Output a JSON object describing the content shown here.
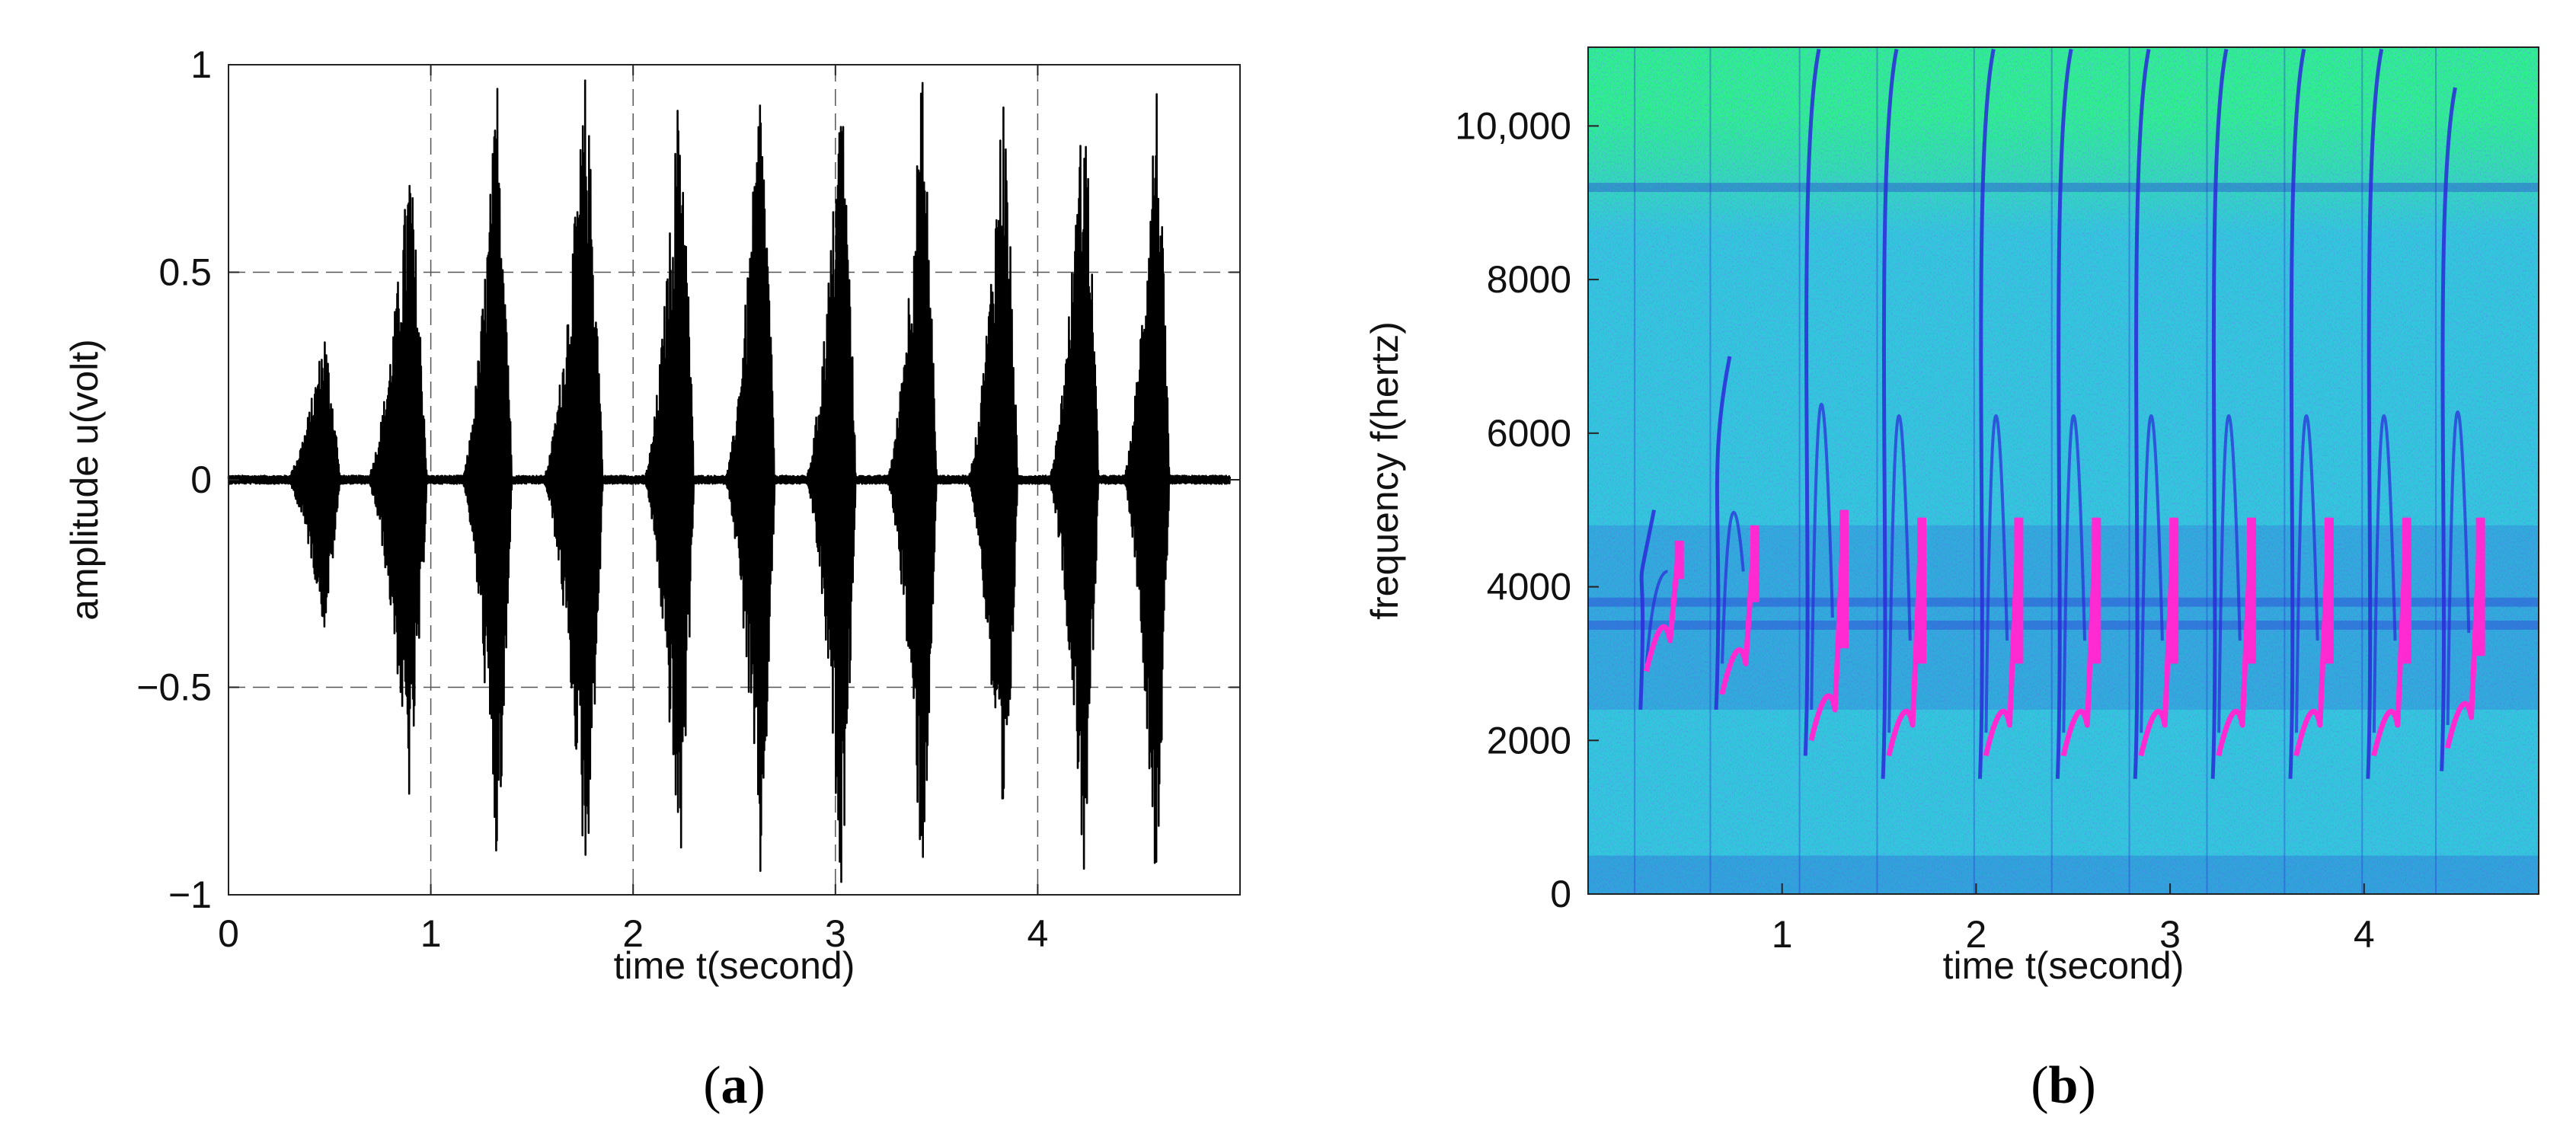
{
  "chart_data": [
    {
      "panel_label": "a",
      "type": "line",
      "xlabel": "time t(second)",
      "ylabel": "amplitude u(volt)",
      "xlim": [
        0,
        5
      ],
      "ylim": [
        -1,
        1
      ],
      "x_ticks": [
        0,
        1,
        2,
        3,
        4
      ],
      "x_tick_labels": [
        "0",
        "1",
        "2",
        "3",
        "4"
      ],
      "y_ticks": [
        -1,
        -0.5,
        0,
        0.5,
        1
      ],
      "y_tick_labels": [
        "−1",
        "−0.5",
        "0",
        "0.5",
        "1"
      ],
      "grid": "dashed",
      "series_color": "#000000",
      "bursts": [
        {
          "start": 0.28,
          "end": 0.55,
          "amplitude": 0.37
        },
        {
          "start": 0.68,
          "end": 0.98,
          "amplitude": 0.8
        },
        {
          "start": 1.15,
          "end": 1.4,
          "amplitude": 1.0
        },
        {
          "start": 1.55,
          "end": 1.85,
          "amplitude": 1.0
        },
        {
          "start": 2.05,
          "end": 2.3,
          "amplitude": 1.0
        },
        {
          "start": 2.45,
          "end": 2.7,
          "amplitude": 1.0
        },
        {
          "start": 2.85,
          "end": 3.1,
          "amplitude": 1.0
        },
        {
          "start": 3.25,
          "end": 3.5,
          "amplitude": 1.0
        },
        {
          "start": 3.65,
          "end": 3.9,
          "amplitude": 0.98
        },
        {
          "start": 4.05,
          "end": 4.3,
          "amplitude": 0.98
        },
        {
          "start": 4.42,
          "end": 4.65,
          "amplitude": 1.0
        }
      ],
      "baseline_noise": 0.01
    },
    {
      "panel_label": "b",
      "type": "heatmap",
      "xlabel": "time t(second)",
      "ylabel": "frequency f(hertz)",
      "xlim": [
        0,
        4.9
      ],
      "ylim": [
        0,
        11025
      ],
      "x_ticks": [
        1,
        2,
        3,
        4
      ],
      "x_tick_labels": [
        "1",
        "2",
        "3",
        "4"
      ],
      "y_ticks": [
        0,
        2000,
        4000,
        6000,
        8000,
        10000
      ],
      "y_tick_labels": [
        "0",
        "2000",
        "4000",
        "6000",
        "8000",
        "10,000"
      ],
      "colors": {
        "background": "#33c8dc",
        "top": "#2ef08c",
        "energy": "#2a2ad8",
        "peak": "#ff2ad2"
      },
      "syllables": [
        {
          "t": 0.27,
          "f_start": 2400,
          "f_end": 5000,
          "peak_band": [
            2900,
            4600
          ]
        },
        {
          "t": 0.66,
          "f_start": 2400,
          "f_end": 7000,
          "peak_band": [
            2600,
            4800
          ]
        },
        {
          "t": 1.12,
          "f_start": 1800,
          "f_end": 11000,
          "peak_band": [
            2000,
            5000
          ]
        },
        {
          "t": 1.52,
          "f_start": 1500,
          "f_end": 11000,
          "peak_band": [
            1800,
            4900
          ]
        },
        {
          "t": 2.02,
          "f_start": 1500,
          "f_end": 11000,
          "peak_band": [
            1800,
            4900
          ]
        },
        {
          "t": 2.42,
          "f_start": 1500,
          "f_end": 11000,
          "peak_band": [
            1800,
            4900
          ]
        },
        {
          "t": 2.82,
          "f_start": 1500,
          "f_end": 11000,
          "peak_band": [
            1800,
            4900
          ]
        },
        {
          "t": 3.22,
          "f_start": 1500,
          "f_end": 11000,
          "peak_band": [
            1800,
            4900
          ]
        },
        {
          "t": 3.62,
          "f_start": 1500,
          "f_end": 11000,
          "peak_band": [
            1800,
            4900
          ]
        },
        {
          "t": 4.02,
          "f_start": 1500,
          "f_end": 11000,
          "peak_band": [
            1800,
            4900
          ]
        },
        {
          "t": 4.4,
          "f_start": 1600,
          "f_end": 10500,
          "peak_band": [
            1900,
            4900
          ]
        }
      ],
      "horizontal_bands": [
        3500,
        3800,
        9200
      ]
    }
  ]
}
